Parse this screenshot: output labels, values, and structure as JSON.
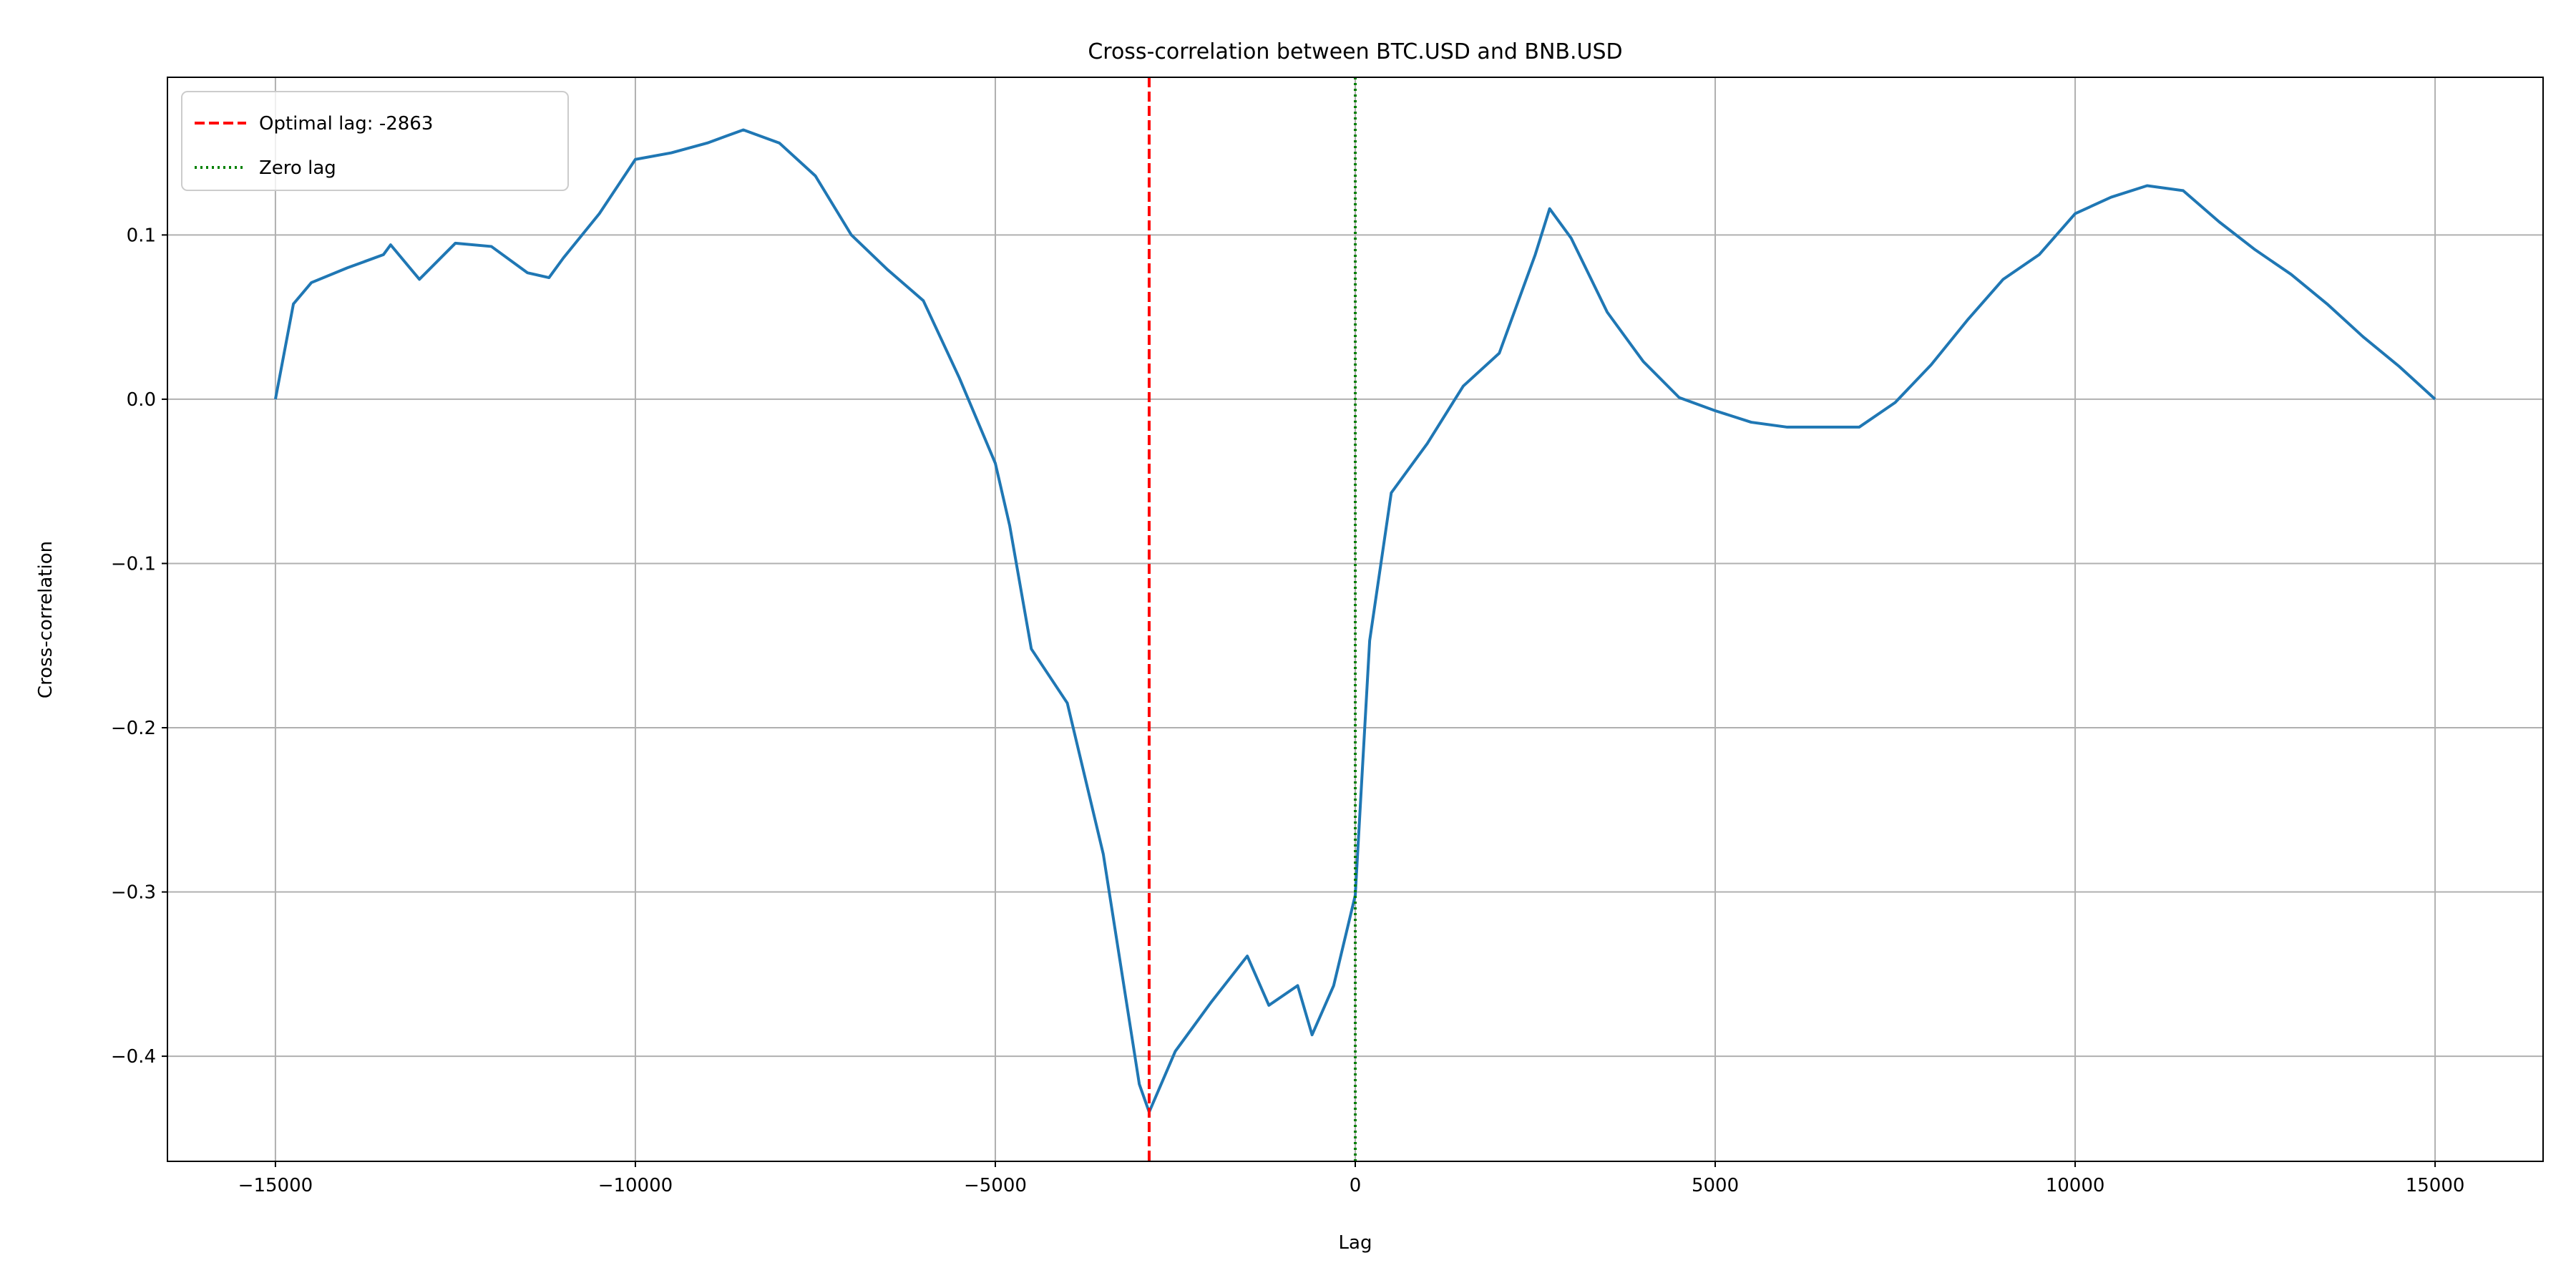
{
  "chart_data": {
    "type": "line",
    "title": "Cross-correlation between BTC.USD and BNB.USD",
    "xlabel": "Lag",
    "ylabel": "Cross-correlation",
    "series": [
      {
        "name": "Cross-correlation",
        "color": "#1f77b4",
        "x": [
          -15000,
          -14750,
          -14500,
          -14000,
          -13500,
          -13400,
          -13000,
          -12500,
          -12000,
          -11500,
          -11200,
          -11000,
          -10500,
          -10000,
          -9500,
          -9000,
          -8500,
          -8000,
          -7500,
          -7000,
          -6500,
          -6000,
          -5500,
          -5000,
          -4800,
          -4500,
          -4000,
          -3500,
          -3000,
          -2863,
          -2500,
          -2000,
          -1500,
          -1200,
          -800,
          -600,
          -300,
          0,
          200,
          500,
          1000,
          1500,
          2000,
          2500,
          2700,
          3000,
          3500,
          4000,
          4500,
          5000,
          5500,
          6000,
          7000,
          7500,
          8000,
          8500,
          9000,
          9500,
          10000,
          10500,
          11000,
          11500,
          12000,
          12500,
          13000,
          13500,
          14000,
          14500,
          15000
        ],
        "values": [
          0.0,
          0.058,
          0.071,
          0.08,
          0.088,
          0.094,
          0.073,
          0.095,
          0.093,
          0.077,
          0.074,
          0.086,
          0.113,
          0.146,
          0.15,
          0.156,
          0.164,
          0.156,
          0.136,
          0.1,
          0.079,
          0.06,
          0.013,
          -0.039,
          -0.077,
          -0.152,
          -0.185,
          -0.277,
          -0.417,
          -0.434,
          -0.397,
          -0.367,
          -0.339,
          -0.369,
          -0.357,
          -0.387,
          -0.357,
          -0.302,
          -0.147,
          -0.057,
          -0.027,
          0.008,
          0.028,
          0.088,
          0.116,
          0.098,
          0.053,
          0.023,
          0.001,
          -0.007,
          -0.014,
          -0.017,
          -0.017,
          -0.002,
          0.021,
          0.048,
          0.073,
          0.088,
          0.113,
          0.123,
          0.13,
          0.127,
          0.108,
          0.091,
          0.076,
          0.058,
          0.038,
          0.02,
          0.0
        ]
      }
    ],
    "vlines": [
      {
        "name": "Optimal lag: -2863",
        "x": -2863,
        "color": "#ff0000",
        "style": "dashed"
      },
      {
        "name": "Zero lag",
        "x": 0,
        "color": "#008000",
        "style": "dotted"
      }
    ],
    "xlim": [
      -16500,
      16500
    ],
    "ylim": [
      -0.464,
      0.196
    ],
    "xticks": [
      {
        "value": -15000,
        "label": "−15000"
      },
      {
        "value": -10000,
        "label": "−10000"
      },
      {
        "value": -5000,
        "label": "−5000"
      },
      0,
      5000,
      10000,
      15000
    ],
    "yticks": [
      {
        "value": -0.4,
        "label": "−0.4"
      },
      {
        "value": -0.3,
        "label": "−0.3"
      },
      {
        "value": -0.2,
        "label": "−0.2"
      },
      {
        "value": -0.1,
        "label": "−0.1"
      },
      {
        "value": 0,
        "label": "0.0"
      },
      0.1
    ],
    "grid": true,
    "legend": "upper-left"
  }
}
